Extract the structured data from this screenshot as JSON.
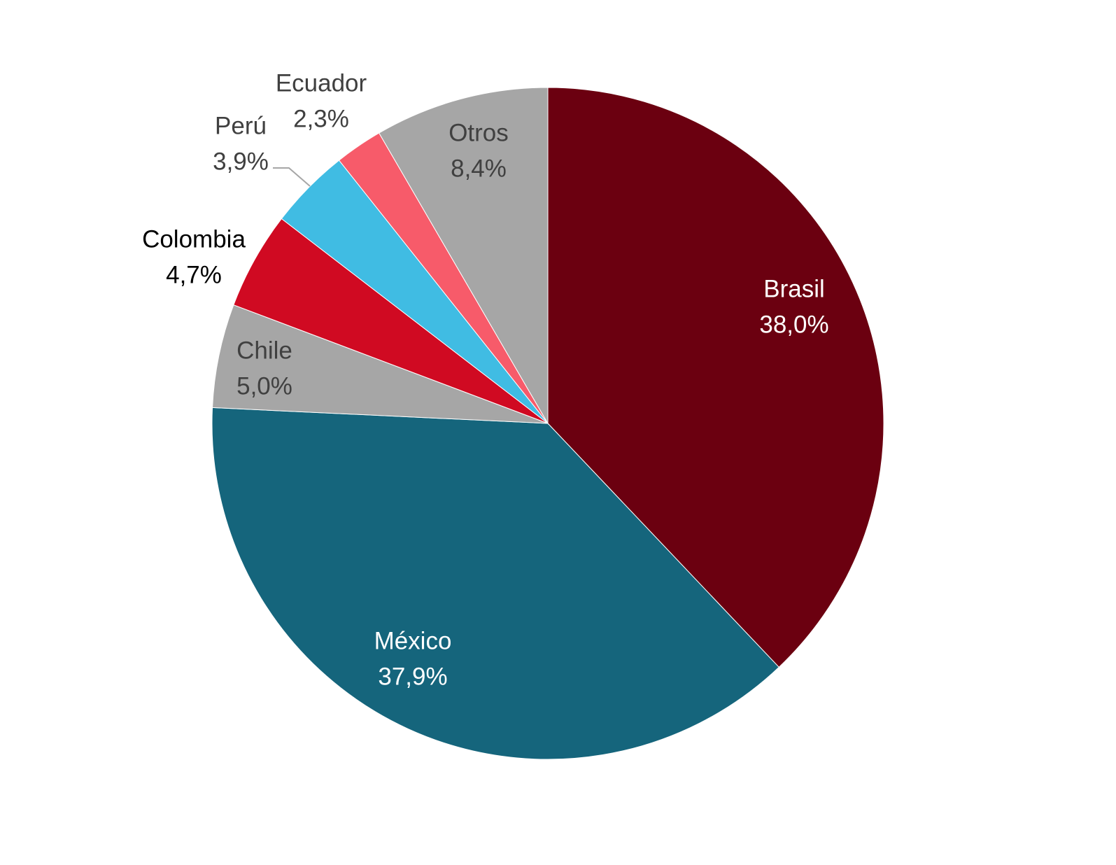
{
  "chart_data": {
    "type": "pie",
    "title": "",
    "start_angle_deg": 0,
    "direction": "clockwise",
    "slices": [
      {
        "name": "Brasil",
        "value": 38.0,
        "value_label": "38,0%",
        "color": "#6b0010",
        "label_color": "#ffffff"
      },
      {
        "name": "México",
        "value": 37.9,
        "value_label": "37,9%",
        "color": "#15657c",
        "label_color": "#ffffff"
      },
      {
        "name": "Chile",
        "value": 5.0,
        "value_label": "5,0%",
        "color": "#a6a6a6",
        "label_color": "#404040"
      },
      {
        "name": "Colombia",
        "value": 4.7,
        "value_label": "4,7%",
        "color": "#d00a22",
        "label_color": "#000000"
      },
      {
        "name": "Perú",
        "value": 3.9,
        "value_label": "3,9%",
        "color": "#40bce3",
        "label_color": "#404040"
      },
      {
        "name": "Ecuador",
        "value": 2.3,
        "value_label": "2,3%",
        "color": "#f75b6a",
        "label_color": "#404040"
      },
      {
        "name": "Otros",
        "value": 8.4,
        "value_label": "8,4%",
        "color": "#a6a6a6",
        "label_color": "#404040"
      }
    ],
    "leader_line_color": "#a6a6a6",
    "legend": "none"
  }
}
